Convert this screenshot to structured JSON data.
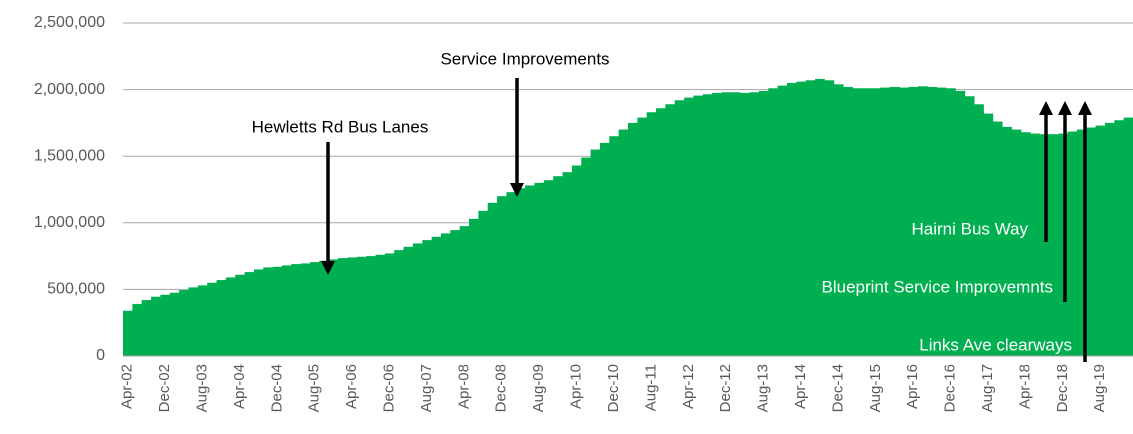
{
  "chart_data": {
    "type": "bar",
    "color": "#00b050",
    "categories": [
      "Apr-02",
      null,
      null,
      null,
      "Dec-02",
      null,
      null,
      null,
      "Aug-03",
      null,
      null,
      null,
      "Apr-04",
      null,
      null,
      null,
      "Dec-04",
      null,
      null,
      null,
      "Aug-05",
      null,
      null,
      null,
      "Apr-06",
      null,
      null,
      null,
      "Dec-06",
      null,
      null,
      null,
      "Aug-07",
      null,
      null,
      null,
      "Apr-08",
      null,
      null,
      null,
      "Dec-08",
      null,
      null,
      null,
      "Aug-09",
      null,
      null,
      null,
      "Apr-10",
      null,
      null,
      null,
      "Dec-10",
      null,
      null,
      null,
      "Aug-11",
      null,
      null,
      null,
      "Apr-12",
      null,
      null,
      null,
      "Dec-12",
      null,
      null,
      null,
      "Aug-13",
      null,
      null,
      null,
      "Apr-14",
      null,
      null,
      null,
      "Dec-14",
      null,
      null,
      null,
      "Aug-15",
      null,
      null,
      null,
      "Apr-16",
      null,
      null,
      null,
      "Dec-16",
      null,
      null,
      null,
      "Aug-17",
      null,
      null,
      null,
      "Apr-18",
      null,
      null,
      null,
      "Dec-18",
      null,
      null,
      null,
      "Aug-19",
      null,
      null,
      null
    ],
    "values": [
      340000,
      390000,
      420000,
      445000,
      460000,
      475000,
      495000,
      515000,
      530000,
      550000,
      570000,
      590000,
      610000,
      630000,
      650000,
      665000,
      670000,
      680000,
      690000,
      695000,
      705000,
      715000,
      725000,
      735000,
      740000,
      745000,
      750000,
      760000,
      770000,
      795000,
      820000,
      845000,
      870000,
      895000,
      920000,
      945000,
      975000,
      1030000,
      1090000,
      1150000,
      1200000,
      1230000,
      1260000,
      1280000,
      1300000,
      1320000,
      1350000,
      1380000,
      1430000,
      1490000,
      1550000,
      1600000,
      1650000,
      1700000,
      1750000,
      1790000,
      1830000,
      1860000,
      1890000,
      1920000,
      1940000,
      1955000,
      1965000,
      1975000,
      1980000,
      1980000,
      1975000,
      1980000,
      1990000,
      2010000,
      2030000,
      2050000,
      2060000,
      2070000,
      2080000,
      2070000,
      2040000,
      2020000,
      2010000,
      2010000,
      2010000,
      2015000,
      2020000,
      2015000,
      2020000,
      2025000,
      2020000,
      2015000,
      2010000,
      1990000,
      1950000,
      1890000,
      1820000,
      1760000,
      1720000,
      1700000,
      1680000,
      1670000,
      1665000,
      1665000,
      1670000,
      1685000,
      1700000,
      1715000,
      1730000,
      1750000,
      1770000,
      1790000
    ],
    "ylim": [
      0,
      2500000
    ],
    "yticks": [
      0,
      {
        "value": 500000,
        "label": "500,000"
      },
      {
        "value": 1000000,
        "label": "1,000,000"
      },
      {
        "value": 1500000,
        "label": "1,500,000"
      },
      {
        "value": 2000000,
        "label": "2,000,000"
      },
      {
        "value": 2500000,
        "label": "2,500,000"
      }
    ],
    "grid": true,
    "annotations": [
      "Service Improvements",
      "Hewletts Rd Bus Lanes",
      "Hairni Bus Way",
      "Blueprint Service Improvemnts",
      "Links Ave clearways"
    ]
  }
}
